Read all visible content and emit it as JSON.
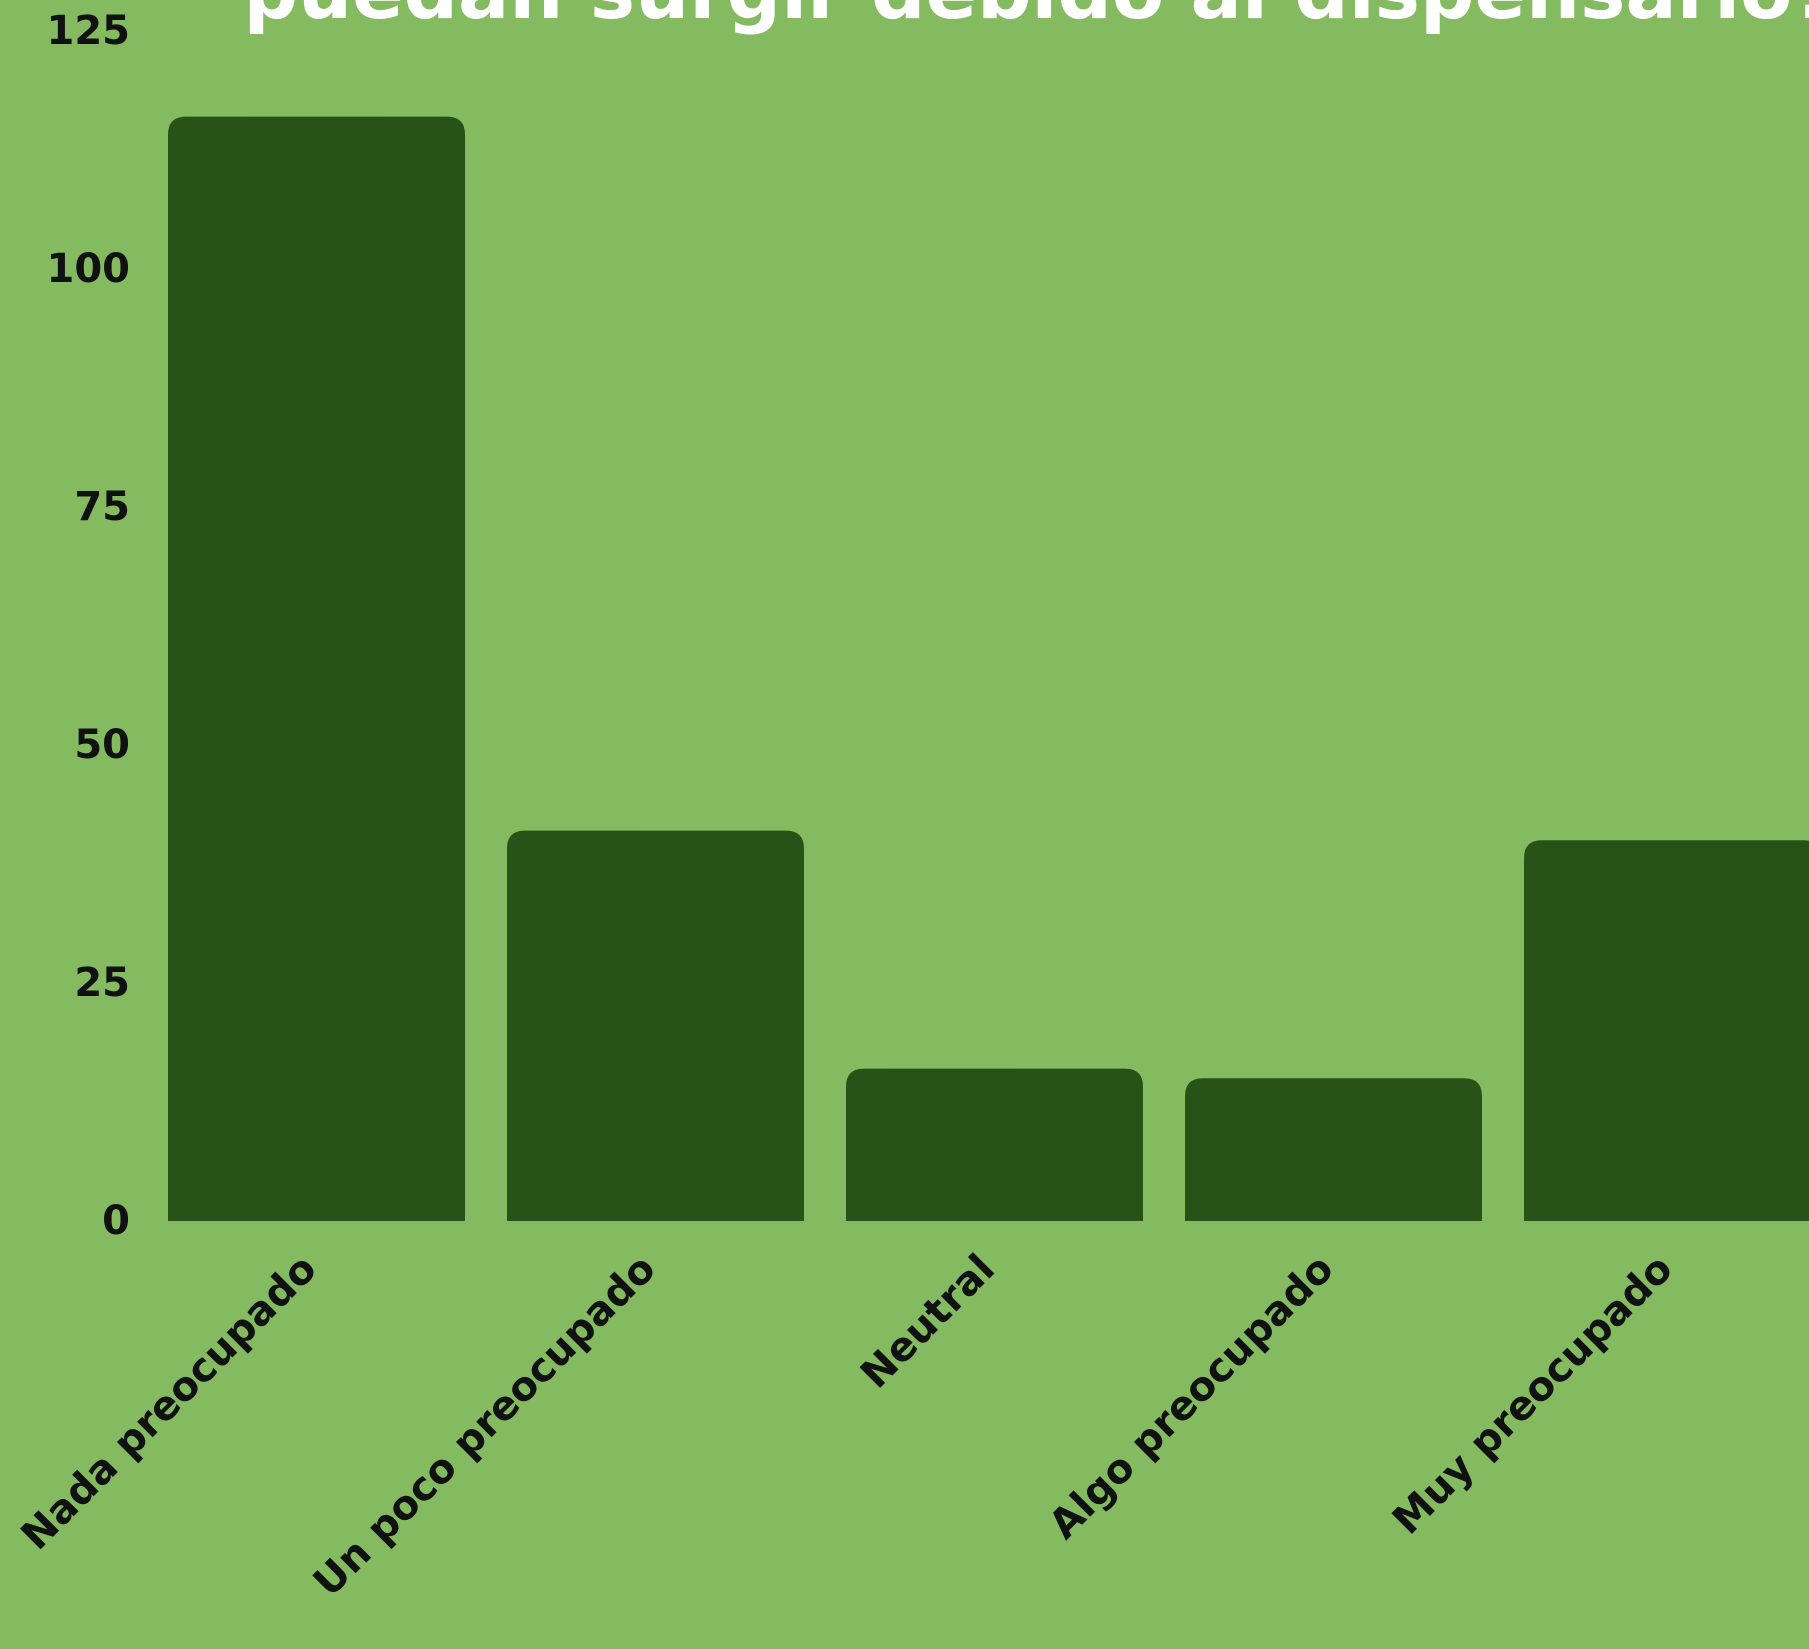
{
  "colors": {
    "background": "#85bb60",
    "bar": "#275218",
    "title": "#ffffff",
    "text": "#111111"
  },
  "chart_data": {
    "type": "bar",
    "title": "puedan surgir debido al dispensario?",
    "xlabel": "",
    "ylabel": "",
    "ylim": [
      0,
      125
    ],
    "yticks": [
      0,
      25,
      50,
      75,
      100,
      125
    ],
    "grid": false,
    "legend": "none",
    "categories": [
      "Nada preocupado",
      "Un poco preocupado",
      "Neutral",
      "Algo preocupado",
      "Muy preocupado"
    ],
    "values": [
      116,
      41,
      16,
      15,
      40
    ]
  }
}
